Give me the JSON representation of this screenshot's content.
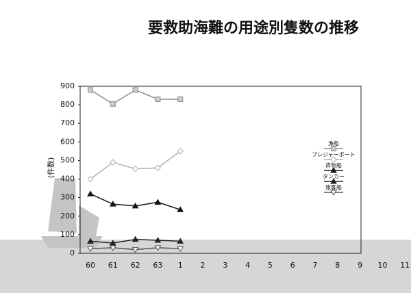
{
  "chart_data": {
    "type": "line",
    "title": "要救助海難の用途別隻数の推移",
    "y_label": "(件数)",
    "categories": [
      "60",
      "61",
      "62",
      "63",
      "1",
      "2",
      "3",
      "4",
      "5",
      "6",
      "7",
      "8",
      "9",
      "10",
      "11"
    ],
    "ylim": [
      0,
      900
    ],
    "yticks": [
      0,
      100,
      200,
      300,
      400,
      500,
      600,
      700,
      800,
      900
    ],
    "grid": false,
    "legend": "right",
    "series": [
      {
        "name": "漁船",
        "color": "#8a8a8a",
        "marker": "square",
        "values": [
          880,
          805,
          880,
          830,
          830,
          null,
          null,
          null,
          null,
          null,
          null,
          null,
          null,
          null,
          null
        ]
      },
      {
        "name": "プレジャーボート",
        "color": "#b0b0b0",
        "marker": "diamond-open",
        "values": [
          400,
          490,
          455,
          460,
          550,
          null,
          null,
          null,
          null,
          null,
          null,
          null,
          null,
          null,
          null
        ]
      },
      {
        "name": "貨物船",
        "color": "#111111",
        "marker": "triangle",
        "values": [
          320,
          265,
          255,
          275,
          235,
          null,
          null,
          null,
          null,
          null,
          null,
          null,
          null,
          null,
          null
        ]
      },
      {
        "name": "タンカー",
        "color": "#222222",
        "marker": "triangle",
        "values": [
          65,
          55,
          75,
          70,
          65,
          null,
          null,
          null,
          null,
          null,
          null,
          null,
          null,
          null,
          null
        ]
      },
      {
        "name": "旅客船",
        "color": "#555555",
        "marker": "triangle-down",
        "values": [
          25,
          30,
          20,
          30,
          25,
          null,
          null,
          null,
          null,
          null,
          null,
          null,
          null,
          null,
          null
        ]
      }
    ]
  }
}
